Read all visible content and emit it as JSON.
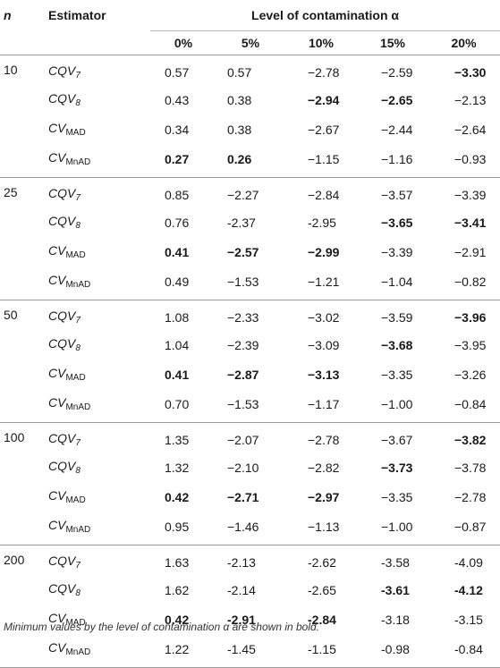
{
  "header": {
    "n_label": "n",
    "estimator_label": "Estimator",
    "level_label": "Level of contamination α",
    "levels": [
      "0%",
      "5%",
      "10%",
      "15%",
      "20%"
    ]
  },
  "groups": [
    {
      "n": "10",
      "rows": [
        {
          "est_main": "CQV",
          "est_sub": "7",
          "values": [
            "0.57",
            "0.57",
            "−2.78",
            "−2.59",
            "−3.30"
          ],
          "bold": [
            false,
            false,
            false,
            false,
            true
          ]
        },
        {
          "est_main": "CQV",
          "est_sub": "8",
          "values": [
            "0.43",
            "0.38",
            "−2.94",
            "−2.65",
            "−2.13"
          ],
          "bold": [
            false,
            false,
            true,
            true,
            false
          ]
        },
        {
          "est_main": "CV",
          "est_sub": "MAD",
          "values": [
            "0.34",
            "0.38",
            "−2.67",
            "−2.44",
            "−2.64"
          ],
          "bold": [
            false,
            false,
            false,
            false,
            false
          ]
        },
        {
          "est_main": "CV",
          "est_sub": "MnAD",
          "values": [
            "0.27",
            "0.26",
            "−1.15",
            "−1.16",
            "−0.93"
          ],
          "bold": [
            true,
            true,
            false,
            false,
            false
          ]
        }
      ]
    },
    {
      "n": "25",
      "rows": [
        {
          "est_main": "CQV",
          "est_sub": "7",
          "values": [
            "0.85",
            "−2.27",
            "−2.84",
            "−3.57",
            "−3.39"
          ],
          "bold": [
            false,
            false,
            false,
            false,
            false
          ]
        },
        {
          "est_main": "CQV",
          "est_sub": "8",
          "values": [
            "0.76",
            "-2.37",
            "-2.95",
            "−3.65",
            "−3.41"
          ],
          "bold": [
            false,
            false,
            false,
            true,
            true
          ]
        },
        {
          "est_main": "CV",
          "est_sub": "MAD",
          "values": [
            "0.41",
            "−2.57",
            "−2.99",
            "−3.39",
            "−2.91"
          ],
          "bold": [
            true,
            true,
            true,
            false,
            false
          ]
        },
        {
          "est_main": "CV",
          "est_sub": "MnAD",
          "values": [
            "0.49",
            "−1.53",
            "−1.21",
            "−1.04",
            "−0.82"
          ],
          "bold": [
            false,
            false,
            false,
            false,
            false
          ]
        }
      ]
    },
    {
      "n": "50",
      "rows": [
        {
          "est_main": "CQV",
          "est_sub": "7",
          "values": [
            "1.08",
            "−2.33",
            "−3.02",
            "−3.59",
            "−3.96"
          ],
          "bold": [
            false,
            false,
            false,
            false,
            true
          ]
        },
        {
          "est_main": "CQV",
          "est_sub": "8",
          "values": [
            "1.04",
            "−2.39",
            "−3.09",
            "−3.68",
            "−3.95"
          ],
          "bold": [
            false,
            false,
            false,
            true,
            false
          ]
        },
        {
          "est_main": "CV",
          "est_sub": "MAD",
          "values": [
            "0.41",
            "−2.87",
            "−3.13",
            "−3.35",
            "−3.26"
          ],
          "bold": [
            true,
            true,
            true,
            false,
            false
          ]
        },
        {
          "est_main": "CV",
          "est_sub": "MnAD",
          "values": [
            "0.70",
            "−1.53",
            "−1.17",
            "−1.00",
            "−0.84"
          ],
          "bold": [
            false,
            false,
            false,
            false,
            false
          ]
        }
      ]
    },
    {
      "n": "100",
      "rows": [
        {
          "est_main": "CQV",
          "est_sub": "7",
          "values": [
            "1.35",
            "−2.07",
            "−2.78",
            "−3.67",
            "−3.82"
          ],
          "bold": [
            false,
            false,
            false,
            false,
            true
          ]
        },
        {
          "est_main": "CQV",
          "est_sub": "8",
          "values": [
            "1.32",
            "−2.10",
            "−2.82",
            "−3.73",
            "−3.78"
          ],
          "bold": [
            false,
            false,
            false,
            true,
            false
          ]
        },
        {
          "est_main": "CV",
          "est_sub": "MAD",
          "values": [
            "0.42",
            "−2.71",
            "−2.97",
            "−3.35",
            "−2.78"
          ],
          "bold": [
            true,
            true,
            true,
            false,
            false
          ]
        },
        {
          "est_main": "CV",
          "est_sub": "MnAD",
          "values": [
            "0.95",
            "−1.46",
            "−1.13",
            "−1.00",
            "−0.87"
          ],
          "bold": [
            false,
            false,
            false,
            false,
            false
          ]
        }
      ]
    },
    {
      "n": "200",
      "rows": [
        {
          "est_main": "CQV",
          "est_sub": "7",
          "values": [
            "1.63",
            "-2.13",
            "-2.62",
            "-3.58",
            "-4.09"
          ],
          "bold": [
            false,
            false,
            false,
            false,
            false
          ]
        },
        {
          "est_main": "CQV",
          "est_sub": "8",
          "values": [
            "1.62",
            "-2.14",
            "-2.65",
            "-3.61",
            "-4.12"
          ],
          "bold": [
            false,
            false,
            false,
            true,
            true
          ]
        },
        {
          "est_main": "CV",
          "est_sub": "MAD",
          "values": [
            "0.42",
            "-2.91",
            "-2.84",
            "-3.18",
            "-3.15"
          ],
          "bold": [
            true,
            true,
            true,
            false,
            false
          ]
        },
        {
          "est_main": "CV",
          "est_sub": "MnAD",
          "values": [
            "1.22",
            "-1.45",
            "-1.15",
            "-0.98",
            "-0.84"
          ],
          "bold": [
            false,
            false,
            false,
            false,
            false
          ]
        }
      ]
    }
  ],
  "footnote": "Minimum values by the level of contamination α are shown in bold."
}
